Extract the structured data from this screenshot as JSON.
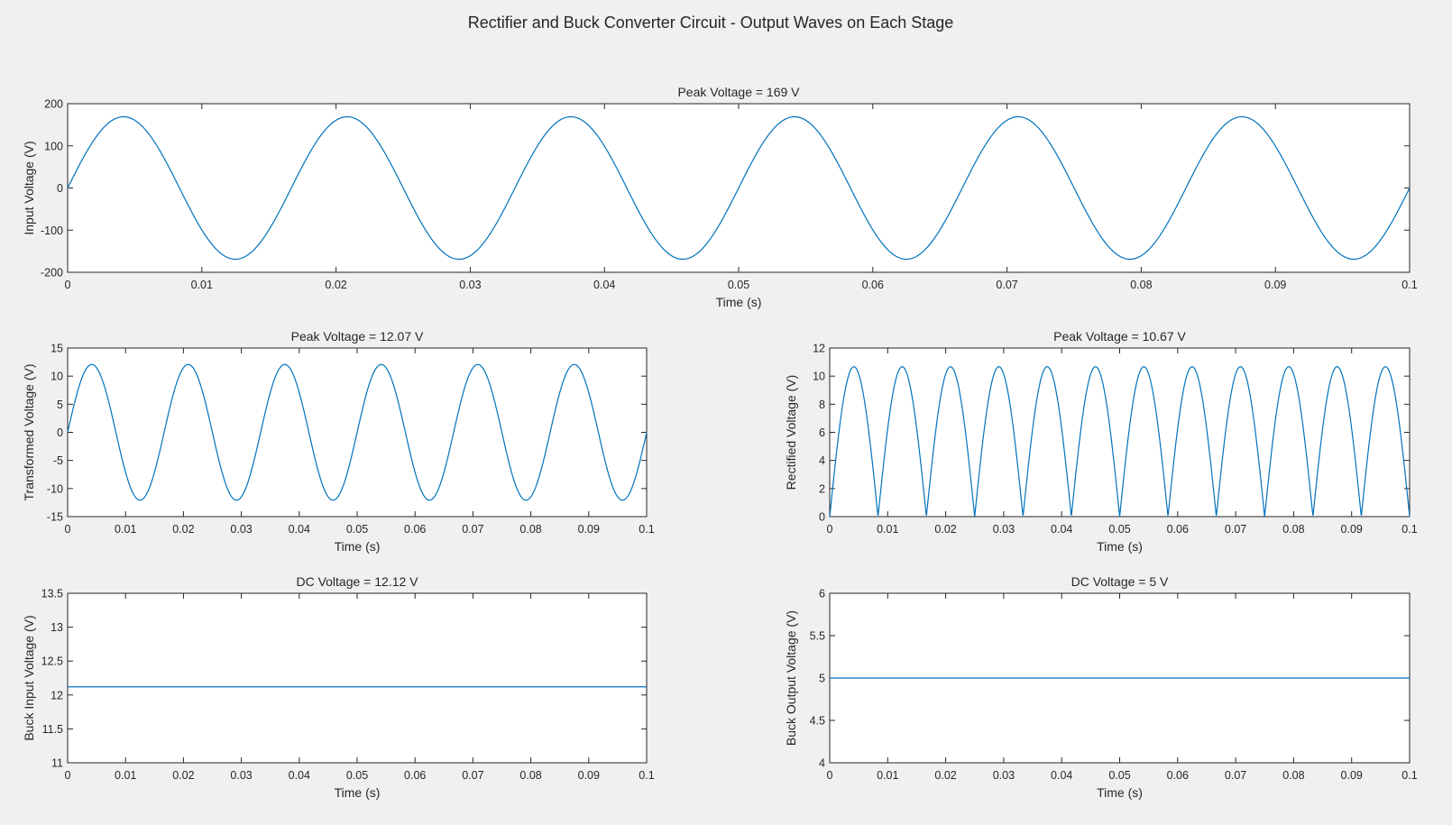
{
  "figure": {
    "suptitle": "Rectifier and Buck Converter Circuit - Output Waves on Each Stage",
    "background": "#f0f0f0",
    "line_color": "#0072bd"
  },
  "chart_data": [
    {
      "id": "input",
      "type": "line",
      "title": "Peak Voltage = 169 V",
      "xlabel": "Time (s)",
      "ylabel": "Input Voltage (V)",
      "xlim": [
        0,
        0.1
      ],
      "ylim": [
        -200,
        200
      ],
      "xticks": [
        0,
        0.01,
        0.02,
        0.03,
        0.04,
        0.05,
        0.06,
        0.07,
        0.08,
        0.09,
        0.1
      ],
      "xtick_labels": [
        "0",
        "0.01",
        "0.02",
        "0.03",
        "0.04",
        "0.05",
        "0.06",
        "0.07",
        "0.08",
        "0.09",
        "0.1"
      ],
      "yticks": [
        -200,
        -100,
        0,
        100,
        200
      ],
      "ytick_labels": [
        "-200",
        "-100",
        "0",
        "100",
        "200"
      ],
      "series": [
        {
          "waveform": "sine",
          "amplitude": 169,
          "frequency_hz": 60,
          "offset": 0
        }
      ]
    },
    {
      "id": "transformed",
      "type": "line",
      "title": "Peak Voltage = 12.07 V",
      "xlabel": "Time (s)",
      "ylabel": "Transformed Voltage (V)",
      "xlim": [
        0,
        0.1
      ],
      "ylim": [
        -15,
        15
      ],
      "xticks": [
        0,
        0.01,
        0.02,
        0.03,
        0.04,
        0.05,
        0.06,
        0.07,
        0.08,
        0.09,
        0.1
      ],
      "xtick_labels": [
        "0",
        "0.01",
        "0.02",
        "0.03",
        "0.04",
        "0.05",
        "0.06",
        "0.07",
        "0.08",
        "0.09",
        "0.1"
      ],
      "yticks": [
        -15,
        -10,
        -5,
        0,
        5,
        10,
        15
      ],
      "ytick_labels": [
        "-15",
        "-10",
        "-5",
        "0",
        "5",
        "10",
        "15"
      ],
      "series": [
        {
          "waveform": "sine",
          "amplitude": 12.07,
          "frequency_hz": 60,
          "offset": 0
        }
      ]
    },
    {
      "id": "rectified",
      "type": "line",
      "title": "Peak Voltage = 10.67 V",
      "xlabel": "Time (s)",
      "ylabel": "Rectified Voltage (V)",
      "xlim": [
        0,
        0.1
      ],
      "ylim": [
        0,
        12
      ],
      "xticks": [
        0,
        0.01,
        0.02,
        0.03,
        0.04,
        0.05,
        0.06,
        0.07,
        0.08,
        0.09,
        0.1
      ],
      "xtick_labels": [
        "0",
        "0.01",
        "0.02",
        "0.03",
        "0.04",
        "0.05",
        "0.06",
        "0.07",
        "0.08",
        "0.09",
        "0.1"
      ],
      "yticks": [
        0,
        2,
        4,
        6,
        8,
        10,
        12
      ],
      "ytick_labels": [
        "0",
        "2",
        "4",
        "6",
        "8",
        "10",
        "12"
      ],
      "series": [
        {
          "waveform": "full-wave-rectified-sine",
          "amplitude": 10.67,
          "frequency_hz": 60,
          "offset": 0
        }
      ]
    },
    {
      "id": "buck-input",
      "type": "line",
      "title": "DC Voltage = 12.12 V",
      "xlabel": "Time (s)",
      "ylabel": "Buck Input Voltage (V)",
      "xlim": [
        0,
        0.1
      ],
      "ylim": [
        11,
        13.5
      ],
      "xticks": [
        0,
        0.01,
        0.02,
        0.03,
        0.04,
        0.05,
        0.06,
        0.07,
        0.08,
        0.09,
        0.1
      ],
      "xtick_labels": [
        "0",
        "0.01",
        "0.02",
        "0.03",
        "0.04",
        "0.05",
        "0.06",
        "0.07",
        "0.08",
        "0.09",
        "0.1"
      ],
      "yticks": [
        11,
        11.5,
        12,
        12.5,
        13,
        13.5
      ],
      "ytick_labels": [
        "11",
        "11.5",
        "12",
        "12.5",
        "13",
        "13.5"
      ],
      "series": [
        {
          "waveform": "constant",
          "value": 12.12
        }
      ]
    },
    {
      "id": "buck-output",
      "type": "line",
      "title": "DC Voltage = 5 V",
      "xlabel": "Time (s)",
      "ylabel": "Buck Output Voltage (V)",
      "xlim": [
        0,
        0.1
      ],
      "ylim": [
        4,
        6
      ],
      "xticks": [
        0,
        0.01,
        0.02,
        0.03,
        0.04,
        0.05,
        0.06,
        0.07,
        0.08,
        0.09,
        0.1
      ],
      "xtick_labels": [
        "0",
        "0.01",
        "0.02",
        "0.03",
        "0.04",
        "0.05",
        "0.06",
        "0.07",
        "0.08",
        "0.09",
        "0.1"
      ],
      "yticks": [
        4,
        4.5,
        5,
        5.5,
        6
      ],
      "ytick_labels": [
        "4",
        "4.5",
        "5",
        "5.5",
        "6"
      ],
      "series": [
        {
          "waveform": "constant",
          "value": 5
        }
      ]
    }
  ]
}
